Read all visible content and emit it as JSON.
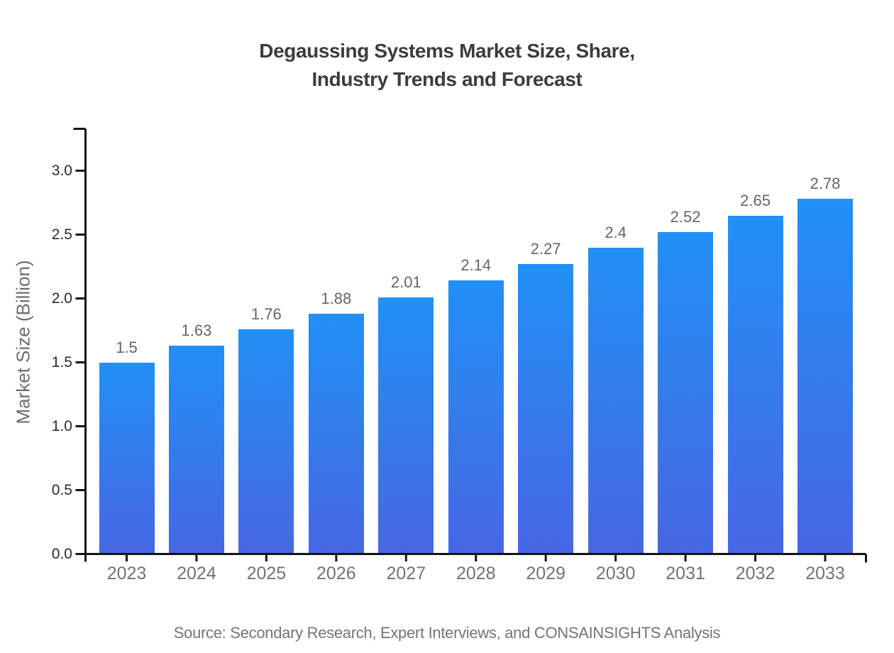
{
  "title": {
    "line1": "Degaussing Systems Market Size, Share,",
    "line2": "Industry Trends and Forecast"
  },
  "y_axis_label": "Market Size (Billion)",
  "source": "Source: Secondary Research, Expert Interviews, and CONSAINSIGHTS Analysis",
  "colors": {
    "bar_gradient_top": "#2190f5",
    "bar_gradient_bottom": "#4767e2",
    "axis_line": "#141414",
    "title_text": "#3c3c3c",
    "y_tick_text": "#2b2b2b",
    "x_tick_text": "#737373",
    "value_label_text": "#656565",
    "source_text": "#757575",
    "background": "#ffffff"
  },
  "chart_data": {
    "type": "bar",
    "title": "Degaussing Systems Market Size, Share, Industry Trends and Forecast",
    "xlabel": "",
    "ylabel": "Market Size (Billion)",
    "categories": [
      "2023",
      "2024",
      "2025",
      "2026",
      "2027",
      "2028",
      "2029",
      "2030",
      "2031",
      "2032",
      "2033"
    ],
    "values": [
      1.5,
      1.63,
      1.76,
      1.88,
      2.01,
      2.14,
      2.27,
      2.4,
      2.52,
      2.65,
      2.78
    ],
    "value_labels": [
      "1.5",
      "1.63",
      "1.76",
      "1.88",
      "2.01",
      "2.14",
      "2.27",
      "2.4",
      "2.52",
      "2.65",
      "2.78"
    ],
    "y_ticks": [
      0.0,
      0.5,
      1.0,
      1.5,
      2.0,
      2.5,
      3.0
    ],
    "y_tick_labels": [
      "0.0",
      "0.5",
      "1.0",
      "1.5",
      "2.0",
      "2.5",
      "3.0"
    ],
    "ylim": [
      0,
      3.33
    ],
    "grid": false,
    "legend": false
  }
}
